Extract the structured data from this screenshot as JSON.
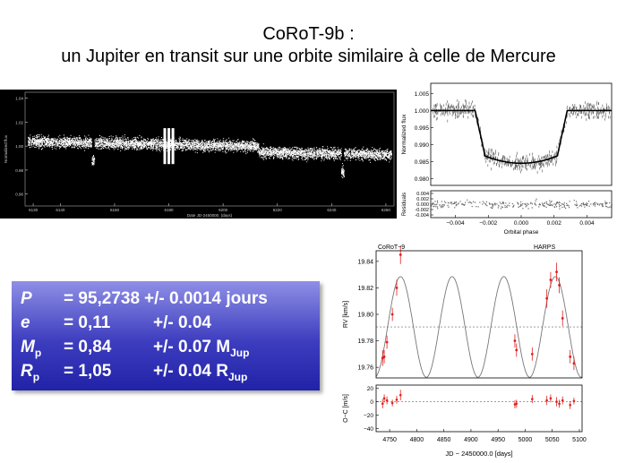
{
  "slide": {
    "title_line1": "CoRoT-9b :",
    "title_line2": "un Jupiter en transit sur une orbite similaire à celle de Mercure"
  },
  "params": [
    {
      "sym": "P",
      "sub": "",
      "val": "= 95,2738",
      "err": "+/- 0.0014 jours",
      "unit_main": "",
      "unit_sub": ""
    },
    {
      "sym": "e",
      "sub": "",
      "val": "= 0,11",
      "err": "+/- 0.04",
      "unit_main": "",
      "unit_sub": ""
    },
    {
      "sym": "M",
      "sub": "p",
      "val": "= 0,84",
      "err": "+/- 0.07 M",
      "unit_main": "M",
      "unit_sub": "Jup"
    },
    {
      "sym": "R",
      "sub": "p",
      "val": "= 1,05",
      "err": "+/- 0.04 R",
      "unit_main": "R",
      "unit_sub": "Jup"
    }
  ],
  "chart_data": [
    {
      "type": "scatter",
      "xlabel": "Date JD-2450000. (days)",
      "ylabel": "Normalized flux",
      "xlim": [
        6127,
        6263
      ],
      "ylim": [
        0.95,
        1.045
      ],
      "xticks": [
        "6130",
        "6140",
        "6160",
        "6180",
        "6200",
        "6220",
        "6240",
        "6260"
      ],
      "yticks": [
        "1.04",
        "1.02",
        "1.00",
        "0.98",
        "0.96"
      ],
      "transits": [
        6152,
        6244
      ],
      "gaps": [
        6178.5,
        6180,
        6181.5
      ],
      "style": {
        "background": "#000000",
        "point_color": "#ffffff"
      }
    },
    {
      "type": "line",
      "xlabel": "Orbital phase",
      "ylabel": "Normalized flux",
      "xlim": [
        -0.0055,
        0.0055
      ],
      "ylim": [
        0.978,
        1.008
      ],
      "xticks": [
        "-0.004",
        "-0.002",
        "0.000",
        "0.002",
        "0.004"
      ],
      "yticks": [
        "1.005",
        "1.000",
        "0.995",
        "0.990",
        "0.985",
        "0.980"
      ],
      "transit_model": {
        "t1": -0.0028,
        "t2": -0.0022,
        "t3": 0.0022,
        "t4": 0.0028,
        "depth": 0.0155
      },
      "residuals": {
        "ylabel": "Residuals",
        "ylim": [
          -0.005,
          0.005
        ],
        "yticks": [
          "0.004",
          "0.002",
          "0.000",
          "-0.002",
          "-0.004"
        ]
      }
    },
    {
      "type": "line",
      "panel_labels": [
        "CoRoT−9",
        "HARPS"
      ],
      "xlabel": "JD − 2450000.0 [days]",
      "ylabel": "RV [km/s]",
      "xlim": [
        4725,
        5105
      ],
      "ylim": [
        19.752,
        19.848
      ],
      "xticks": [
        "4750",
        "4800",
        "4850",
        "4900",
        "4950",
        "5000",
        "5050",
        "5100"
      ],
      "yticks": [
        "19.84",
        "19.82",
        "19.80",
        "19.78",
        "19.76"
      ],
      "model": {
        "period": 95.2738,
        "k": 0.038,
        "gamma": 19.7905,
        "t_max": 4770
      },
      "systemic_line": 19.7905,
      "points": [
        {
          "x": 4737,
          "y": 19.767,
          "err": 0.006
        },
        {
          "x": 4740,
          "y": 19.768,
          "err": 0.005
        },
        {
          "x": 4745,
          "y": 19.779,
          "err": 0.005
        },
        {
          "x": 4755,
          "y": 19.8,
          "err": 0.005
        },
        {
          "x": 4763,
          "y": 19.82,
          "err": 0.006
        },
        {
          "x": 4770,
          "y": 19.845,
          "err": 0.007
        },
        {
          "x": 4981,
          "y": 19.78,
          "err": 0.005
        },
        {
          "x": 4984,
          "y": 19.773,
          "err": 0.005
        },
        {
          "x": 5013,
          "y": 19.77,
          "err": 0.005
        },
        {
          "x": 5040,
          "y": 19.812,
          "err": 0.007
        },
        {
          "x": 5047,
          "y": 19.826,
          "err": 0.006
        },
        {
          "x": 5058,
          "y": 19.832,
          "err": 0.007
        },
        {
          "x": 5063,
          "y": 19.822,
          "err": 0.006
        },
        {
          "x": 5069,
          "y": 19.797,
          "err": 0.006
        },
        {
          "x": 5083,
          "y": 19.768,
          "err": 0.005
        },
        {
          "x": 5090,
          "y": 19.763,
          "err": 0.005
        }
      ],
      "residuals": {
        "ylabel": "O−C [m/s]",
        "ylim": [
          -45,
          25
        ],
        "yticks": [
          "20",
          "0",
          "−20",
          "−40"
        ],
        "points": [
          {
            "x": 4737,
            "y": -3,
            "err": 7
          },
          {
            "x": 4740,
            "y": 5,
            "err": 6
          },
          {
            "x": 4745,
            "y": 2,
            "err": 6
          },
          {
            "x": 4755,
            "y": -2,
            "err": 5
          },
          {
            "x": 4763,
            "y": 3,
            "err": 6
          },
          {
            "x": 4770,
            "y": 10,
            "err": 8
          },
          {
            "x": 4981,
            "y": -4,
            "err": 6
          },
          {
            "x": 4984,
            "y": -3,
            "err": 6
          },
          {
            "x": 5013,
            "y": 4,
            "err": 6
          },
          {
            "x": 5040,
            "y": 2,
            "err": 7
          },
          {
            "x": 5047,
            "y": 5,
            "err": 6
          },
          {
            "x": 5058,
            "y": 0,
            "err": 7
          },
          {
            "x": 5063,
            "y": -3,
            "err": 6
          },
          {
            "x": 5069,
            "y": 2,
            "err": 6
          },
          {
            "x": 5083,
            "y": -5,
            "err": 6
          },
          {
            "x": 5090,
            "y": 1,
            "err": 5
          }
        ]
      }
    }
  ]
}
